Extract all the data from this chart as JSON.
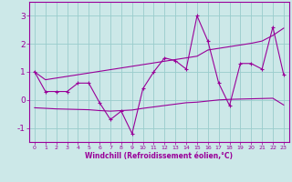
{
  "xlabel": "Windchill (Refroidissement éolien,°C)",
  "background_color": "#cce8e8",
  "grid_color": "#99cccc",
  "line_color": "#990099",
  "x_hours": [
    0,
    1,
    2,
    3,
    4,
    5,
    6,
    7,
    8,
    9,
    10,
    11,
    12,
    13,
    14,
    15,
    16,
    17,
    18,
    19,
    20,
    21,
    22,
    23
  ],
  "y_main": [
    1.0,
    0.3,
    0.3,
    0.3,
    0.6,
    0.6,
    -0.1,
    -0.7,
    -0.4,
    -1.2,
    0.4,
    1.0,
    1.5,
    1.4,
    1.1,
    3.0,
    2.1,
    0.6,
    -0.2,
    1.3,
    1.3,
    1.1,
    2.6,
    0.9
  ],
  "y_upper": [
    1.0,
    0.72,
    0.78,
    0.84,
    0.9,
    0.96,
    1.02,
    1.08,
    1.14,
    1.2,
    1.26,
    1.32,
    1.38,
    1.44,
    1.5,
    1.56,
    1.78,
    1.84,
    1.9,
    1.96,
    2.02,
    2.1,
    2.3,
    2.56
  ],
  "y_lower": [
    -0.28,
    -0.3,
    -0.32,
    -0.33,
    -0.34,
    -0.35,
    -0.38,
    -0.4,
    -0.38,
    -0.36,
    -0.3,
    -0.25,
    -0.2,
    -0.15,
    -0.1,
    -0.08,
    -0.04,
    0.0,
    0.02,
    0.03,
    0.04,
    0.05,
    0.06,
    -0.18
  ],
  "ylim": [
    -1.5,
    3.5
  ],
  "yticks": [
    -1,
    0,
    1,
    2,
    3
  ],
  "xlim": [
    -0.5,
    23.5
  ],
  "xticks": [
    0,
    1,
    2,
    3,
    4,
    5,
    6,
    7,
    8,
    9,
    10,
    11,
    12,
    13,
    14,
    15,
    16,
    17,
    18,
    19,
    20,
    21,
    22,
    23
  ]
}
